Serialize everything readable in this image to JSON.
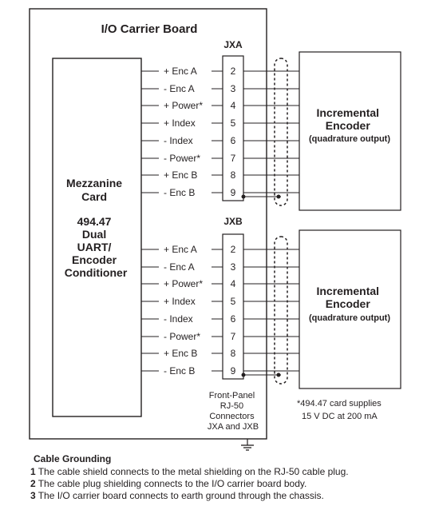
{
  "board": {
    "title": "I/O Carrier Board",
    "mezzanine": {
      "lines": [
        "Mezzanine",
        "Card",
        "",
        "494.47",
        "Dual",
        "UART/",
        "Encoder",
        "Conditioner"
      ]
    }
  },
  "connectors": [
    {
      "name": "JXA",
      "signals": [
        "+ Enc A",
        "- Enc A",
        "+ Power*",
        "+ Index",
        "- Index",
        "- Power*",
        "+ Enc B",
        "- Enc B"
      ],
      "pins": [
        "2",
        "3",
        "4",
        "5",
        "6",
        "7",
        "8",
        "9"
      ]
    },
    {
      "name": "JXB",
      "signals": [
        "+ Enc A",
        "- Enc A",
        "+ Power*",
        "+ Index",
        "- Index",
        "- Power*",
        "+ Enc B",
        "- Enc B"
      ],
      "pins": [
        "2",
        "3",
        "4",
        "5",
        "6",
        "7",
        "8",
        "9"
      ]
    }
  ],
  "encoders": [
    {
      "lines": [
        "Incremental",
        "Encoder",
        "(quadrature output)"
      ]
    },
    {
      "lines": [
        "Incremental",
        "Encoder",
        "(quadrature output)"
      ]
    }
  ],
  "front_panel_note": [
    "Front-Panel",
    "RJ-50",
    "Connectors",
    "JXA and JXB"
  ],
  "power_note": [
    "*494.47 card supplies",
    "15 V DC at 200 mA"
  ],
  "cable_grounding": {
    "title": "Cable Grounding",
    "items": [
      {
        "num": "1",
        "text": "The cable shield connects to the metal shielding on the RJ-50 cable plug."
      },
      {
        "num": "2",
        "text": "The cable plug shielding connects to the I/O carrier board body."
      },
      {
        "num": "3",
        "text": "The I/O carrier board connects to earth ground through the chassis."
      }
    ]
  },
  "colors": {
    "line": "#231f20",
    "background": "#ffffff"
  }
}
